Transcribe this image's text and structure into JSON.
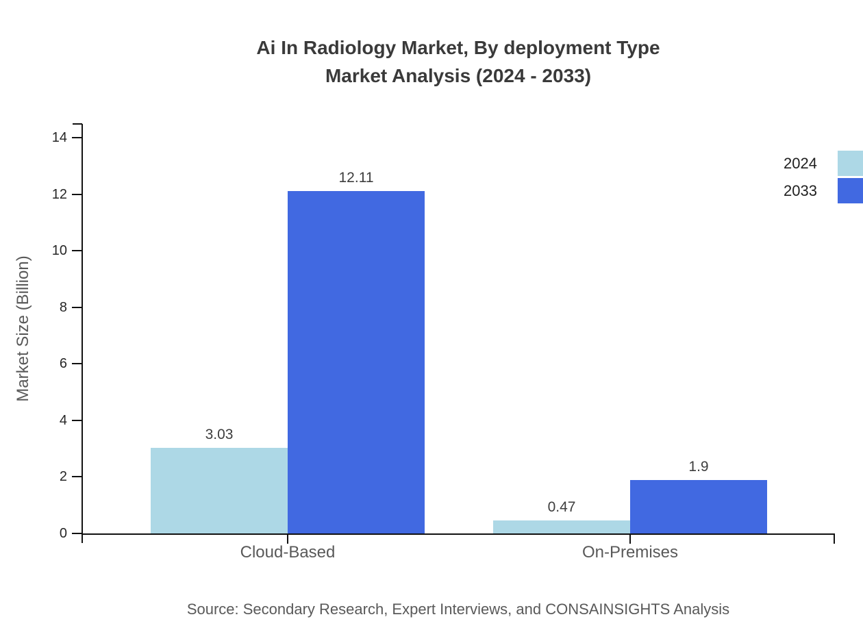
{
  "title": {
    "line1": "Ai In Radiology Market, By deployment Type",
    "line2": "Market Analysis (2024 - 2033)"
  },
  "source_note": "Source: Secondary Research, Expert Interviews, and CONSAINSIGHTS Analysis",
  "colors": {
    "series_2024": "#ADD8E6",
    "series_2033": "#4169E1",
    "axis": "#111111",
    "title_text": "#3a3a3a",
    "muted_text": "#595959",
    "tick_text": "#262626"
  },
  "chart_data": {
    "type": "bar",
    "title": "Ai In Radiology Market, By deployment Type Market Analysis (2024 - 2033)",
    "categories": [
      "Cloud-Based",
      "On-Premises"
    ],
    "series": [
      {
        "name": "2024",
        "color": "#ADD8E6",
        "values": [
          3.03,
          0.47
        ]
      },
      {
        "name": "2033",
        "color": "#4169E1",
        "values": [
          12.11,
          1.9
        ]
      }
    ],
    "xlabel": "",
    "ylabel": "Market Size (Billion)",
    "ylim": [
      0,
      14
    ],
    "yticks": [
      0,
      2,
      4,
      6,
      8,
      10,
      12,
      14
    ],
    "grid": false,
    "legend_position": "top-right",
    "value_labels_shown": true
  }
}
